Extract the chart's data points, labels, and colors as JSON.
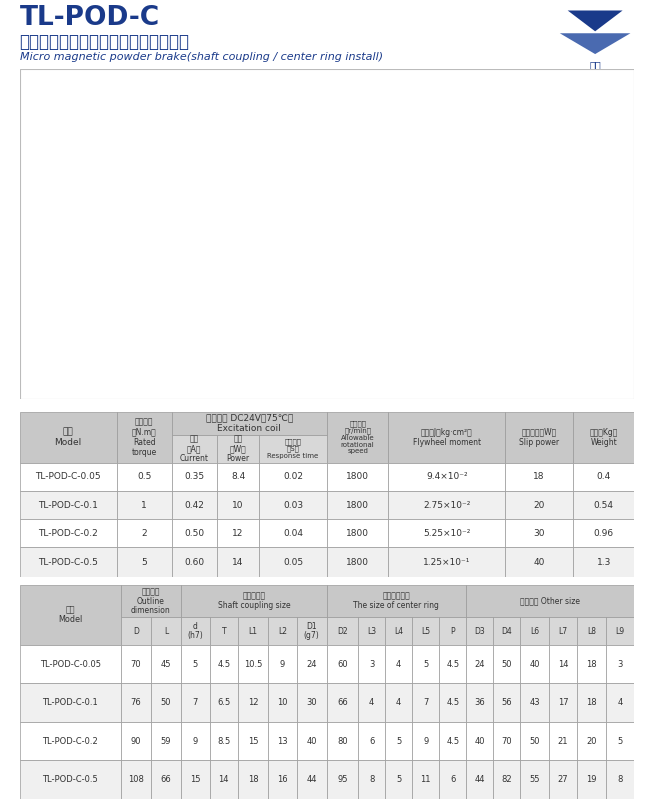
{
  "title_main": "TL-POD-C",
  "title_cn": "（軸聯結、止口支擐）微型磁粉制動器",
  "title_en": "Micro magnetic powder brake(shaft coupling / center ring install)",
  "table1_data": [
    [
      "TL-POD-C-0.05",
      "0.5",
      "0.35",
      "8.4",
      "0.02",
      "1800",
      "9.4×10⁻²",
      "18",
      "0.4"
    ],
    [
      "TL-POD-C-0.1",
      "1",
      "0.42",
      "10",
      "0.03",
      "1800",
      "2.75×10⁻²",
      "20",
      "0.54"
    ],
    [
      "TL-POD-C-0.2",
      "2",
      "0.50",
      "12",
      "0.04",
      "1800",
      "5.25×10⁻²",
      "30",
      "0.96"
    ],
    [
      "TL-POD-C-0.5",
      "5",
      "0.60",
      "14",
      "0.05",
      "1800",
      "1.25×10⁻¹",
      "40",
      "1.3"
    ]
  ],
  "table2_data": [
    [
      "TL-POD-C-0.05",
      "70",
      "45",
      "5",
      "4.5",
      "10.5",
      "9",
      "24",
      "60",
      "3",
      "4",
      "5",
      "4.5",
      "24",
      "50",
      "40",
      "14",
      "18",
      "3"
    ],
    [
      "TL-POD-C-0.1",
      "76",
      "50",
      "7",
      "6.5",
      "12",
      "10",
      "30",
      "66",
      "4",
      "4",
      "7",
      "4.5",
      "36",
      "56",
      "43",
      "17",
      "18",
      "4"
    ],
    [
      "TL-POD-C-0.2",
      "90",
      "59",
      "9",
      "8.5",
      "15",
      "13",
      "40",
      "80",
      "6",
      "5",
      "9",
      "4.5",
      "40",
      "70",
      "50",
      "21",
      "20",
      "5"
    ],
    [
      "TL-POD-C-0.5",
      "108",
      "66",
      "15",
      "14",
      "18",
      "16",
      "44",
      "95",
      "8",
      "5",
      "11",
      "6",
      "44",
      "82",
      "55",
      "27",
      "19",
      "8"
    ]
  ],
  "header_bg": "#c8c8c8",
  "subheader_bg": "#d8d8d8",
  "data_bg_odd": "#ffffff",
  "data_bg_even": "#f0f0f0",
  "border_color": "#999999",
  "text_color_title": "#1a3a8a",
  "text_color_body": "#333333",
  "background_color": "#ffffff"
}
